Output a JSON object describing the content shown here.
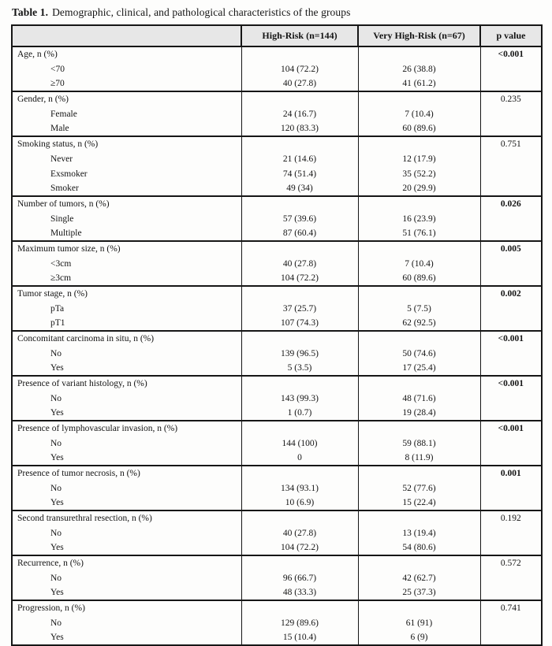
{
  "caption": {
    "label": "Table 1.",
    "text": "Demographic, clinical, and pathological characteristics of the groups"
  },
  "colors": {
    "header_bg": "#e7e7e7",
    "border": "#161616",
    "page_bg": "#fdfdfc"
  },
  "table": {
    "columns": [
      "",
      "High-Risk (n=144)",
      "Very High-Risk (n=67)",
      "p value"
    ],
    "groups": [
      {
        "label": "Age, n (%)",
        "p_value": "<0.001",
        "p_bold": true,
        "rows": [
          {
            "label": "<70",
            "high_risk": "104 (72.2)",
            "very_high_risk": "26 (38.8)"
          },
          {
            "label": "≥70",
            "high_risk": "40 (27.8)",
            "very_high_risk": "41 (61.2)"
          }
        ]
      },
      {
        "label": "Gender, n (%)",
        "p_value": "0.235",
        "p_bold": false,
        "rows": [
          {
            "label": "Female",
            "high_risk": "24 (16.7)",
            "very_high_risk": "7 (10.4)"
          },
          {
            "label": "Male",
            "high_risk": "120 (83.3)",
            "very_high_risk": "60 (89.6)"
          }
        ]
      },
      {
        "label": "Smoking status, n (%)",
        "p_value": "0.751",
        "p_bold": false,
        "rows": [
          {
            "label": "Never",
            "high_risk": "21 (14.6)",
            "very_high_risk": "12 (17.9)"
          },
          {
            "label": "Exsmoker",
            "high_risk": "74 (51.4)",
            "very_high_risk": "35 (52.2)"
          },
          {
            "label": "Smoker",
            "high_risk": "49 (34)",
            "very_high_risk": "20 (29.9)"
          }
        ]
      },
      {
        "label": "Number of tumors, n (%)",
        "p_value": "0.026",
        "p_bold": true,
        "rows": [
          {
            "label": "Single",
            "high_risk": "57 (39.6)",
            "very_high_risk": "16 (23.9)"
          },
          {
            "label": "Multiple",
            "high_risk": "87 (60.4)",
            "very_high_risk": "51 (76.1)"
          }
        ]
      },
      {
        "label": "Maximum tumor size, n (%)",
        "p_value": "0.005",
        "p_bold": true,
        "rows": [
          {
            "label": "<3cm",
            "high_risk": "40 (27.8)",
            "very_high_risk": "7 (10.4)"
          },
          {
            "label": "≥3cm",
            "high_risk": "104 (72.2)",
            "very_high_risk": "60 (89.6)"
          }
        ]
      },
      {
        "label": "Tumor stage, n (%)",
        "p_value": "0.002",
        "p_bold": true,
        "rows": [
          {
            "label": "pTa",
            "high_risk": "37 (25.7)",
            "very_high_risk": "5 (7.5)"
          },
          {
            "label": "pT1",
            "high_risk": "107 (74.3)",
            "very_high_risk": "62 (92.5)"
          }
        ]
      },
      {
        "label": "Concomitant carcinoma in situ, n (%)",
        "p_value": "<0.001",
        "p_bold": true,
        "rows": [
          {
            "label": "No",
            "high_risk": "139 (96.5)",
            "very_high_risk": "50 (74.6)"
          },
          {
            "label": "Yes",
            "high_risk": "5 (3.5)",
            "very_high_risk": "17 (25.4)"
          }
        ]
      },
      {
        "label": "Presence of variant histology, n (%)",
        "p_value": "<0.001",
        "p_bold": true,
        "rows": [
          {
            "label": "No",
            "high_risk": "143 (99.3)",
            "very_high_risk": "48 (71.6)"
          },
          {
            "label": "Yes",
            "high_risk": "1 (0.7)",
            "very_high_risk": "19 (28.4)"
          }
        ]
      },
      {
        "label": "Presence of lymphovascular invasion, n (%)",
        "p_value": "<0.001",
        "p_bold": true,
        "rows": [
          {
            "label": "No",
            "high_risk": "144 (100)",
            "very_high_risk": "59 (88.1)"
          },
          {
            "label": "Yes",
            "high_risk": "0",
            "very_high_risk": "8 (11.9)"
          }
        ]
      },
      {
        "label": "Presence of tumor necrosis, n (%)",
        "p_value": "0.001",
        "p_bold": true,
        "rows": [
          {
            "label": "No",
            "high_risk": "134 (93.1)",
            "very_high_risk": "52 (77.6)"
          },
          {
            "label": "Yes",
            "high_risk": "10 (6.9)",
            "very_high_risk": "15 (22.4)"
          }
        ]
      },
      {
        "label": "Second transurethral resection, n (%)",
        "p_value": "0.192",
        "p_bold": false,
        "rows": [
          {
            "label": "No",
            "high_risk": "40 (27.8)",
            "very_high_risk": "13 (19.4)"
          },
          {
            "label": "Yes",
            "high_risk": "104 (72.2)",
            "very_high_risk": "54 (80.6)"
          }
        ]
      },
      {
        "label": "Recurrence, n (%)",
        "p_value": "0.572",
        "p_bold": false,
        "rows": [
          {
            "label": "No",
            "high_risk": "96 (66.7)",
            "very_high_risk": "42 (62.7)"
          },
          {
            "label": "Yes",
            "high_risk": "48 (33.3)",
            "very_high_risk": "25 (37.3)"
          }
        ]
      },
      {
        "label": "Progression, n (%)",
        "p_value": "0.741",
        "p_bold": false,
        "rows": [
          {
            "label": "No",
            "high_risk": "129 (89.6)",
            "very_high_risk": "61 (91)"
          },
          {
            "label": "Yes",
            "high_risk": "15 (10.4)",
            "very_high_risk": "6 (9)"
          }
        ]
      }
    ]
  }
}
